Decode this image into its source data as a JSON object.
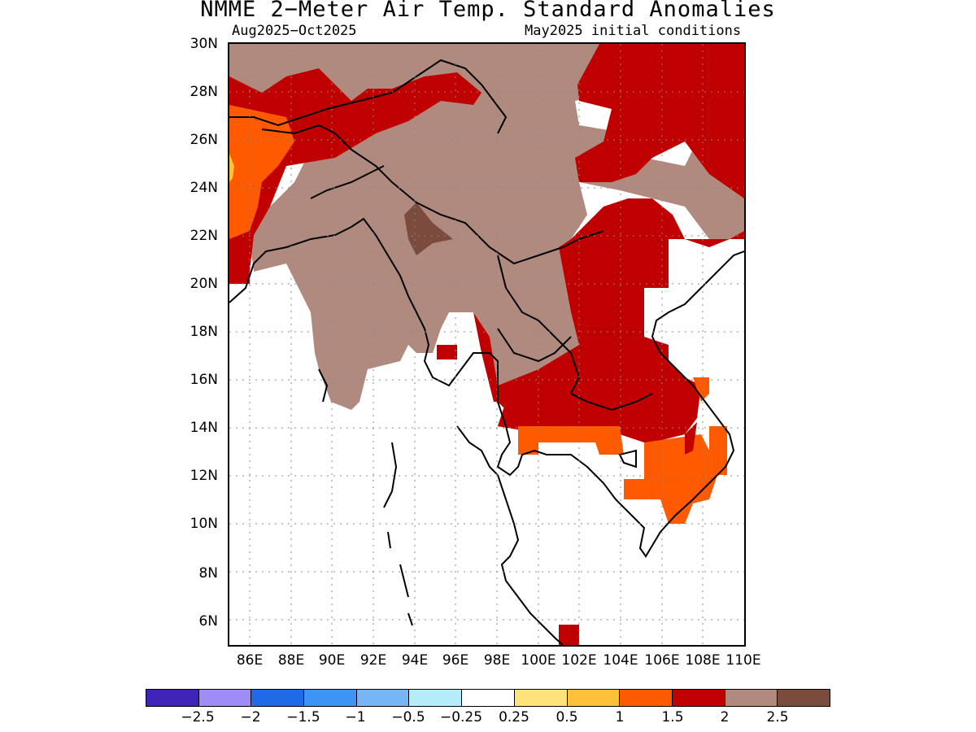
{
  "title": "NMME 2−Meter Air Temp. Standard Anomalies",
  "period": "Aug2025−Oct2025",
  "initial_conditions": "May2025 initial conditions",
  "map": {
    "lat_labels": [
      "30N",
      "28N",
      "26N",
      "24N",
      "22N",
      "20N",
      "18N",
      "16N",
      "14N",
      "12N",
      "10N",
      "8N",
      "6N"
    ],
    "lon_labels": [
      "86E",
      "88E",
      "90E",
      "92E",
      "94E",
      "96E",
      "98E",
      "100E",
      "102E",
      "104E",
      "106E",
      "108E",
      "110E"
    ],
    "lon_range": [
      85,
      110
    ],
    "lat_range": [
      5,
      30
    ],
    "gridlines": true
  },
  "colorbar": {
    "colors": [
      "#3f23b8",
      "#9f8cf5",
      "#1f6ae6",
      "#3d94f5",
      "#76b6f7",
      "#b5ecfa",
      "#ffffff",
      "#ffe37a",
      "#ffc03a",
      "#ff5a00",
      "#c00000",
      "#b08a7e",
      "#7b4c3e"
    ],
    "labels": [
      "−2.5",
      "−2",
      "−1.5",
      "−1",
      "−0.5",
      "−0.25",
      "0.25",
      "0.5",
      "1",
      "1.5",
      "2",
      "2.5"
    ]
  }
}
